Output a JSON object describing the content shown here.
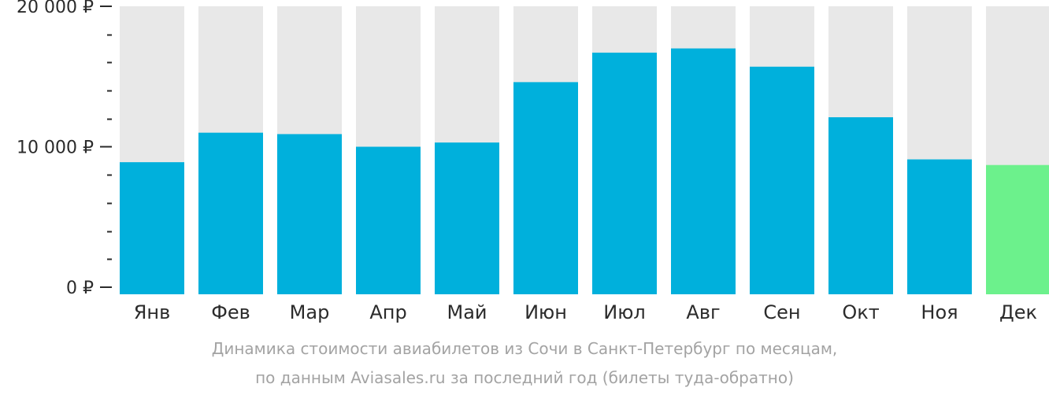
{
  "chart_data": {
    "type": "bar",
    "categories": [
      "Янв",
      "Фев",
      "Мар",
      "Апр",
      "Май",
      "Июн",
      "Июл",
      "Авг",
      "Сен",
      "Окт",
      "Ноя",
      "Дек"
    ],
    "values": [
      8900,
      11000,
      10900,
      10000,
      10300,
      14600,
      16700,
      17000,
      15700,
      12100,
      9100,
      8700
    ],
    "highlight_index": 11,
    "ylim": [
      0,
      20000
    ],
    "yticks": [
      {
        "value": 0,
        "label": "0 ₽"
      },
      {
        "value": 10000,
        "label": "10 000 ₽"
      },
      {
        "value": 20000,
        "label": "20 000 ₽"
      }
    ],
    "minor_tick_step": 2000,
    "xlabel": "",
    "ylabel": "",
    "grid": false,
    "colors": {
      "bar": "#00b0dc",
      "highlight": "#6cf18c",
      "bar_background": "#e8e8e8",
      "axis_text": "#2b2b2b",
      "caption": "#a3a3a3"
    }
  },
  "caption": {
    "line1": "Динамика стоимости авиабилетов из Сочи в Санкт-Петербург по месяцам,",
    "line2": "по данным Aviasales.ru за последний год (билеты туда-обратно)"
  }
}
